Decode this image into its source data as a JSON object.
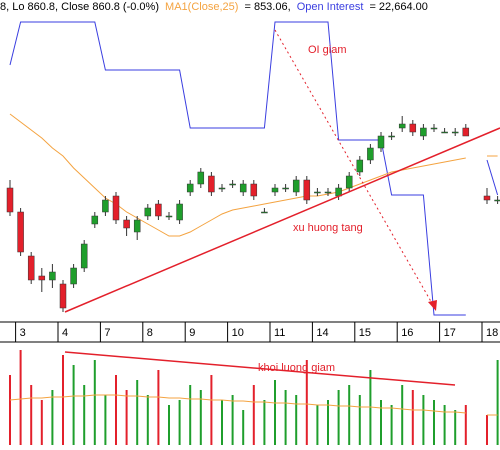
{
  "chart_data": [
    {
      "type": "candlestick",
      "title": "8, Lo 860.8, Close 860.8 (-0.0%)",
      "categories": [
        null,
        "3",
        null,
        null,
        null,
        "4",
        null,
        null,
        null,
        "7",
        null,
        null,
        null,
        "8",
        null,
        null,
        null,
        "9",
        null,
        null,
        null,
        "10",
        null,
        null,
        null,
        "11",
        null,
        null,
        null,
        "14",
        null,
        null,
        null,
        "15",
        null,
        null,
        null,
        "16",
        null,
        null,
        null,
        "17",
        null,
        null,
        null,
        "18",
        null
      ],
      "open": [
        853,
        847,
        836,
        831,
        830,
        829,
        829,
        833,
        844,
        847,
        851,
        845,
        842,
        846,
        849,
        846,
        845,
        852,
        854,
        856,
        853,
        854,
        852,
        854,
        847,
        852,
        853,
        852,
        855,
        852,
        852,
        851,
        853,
        857,
        860,
        863,
        866,
        868,
        869,
        866,
        868,
        867,
        867,
        868,
        null,
        851,
        850
      ],
      "high": [
        855,
        848,
        837,
        833,
        834,
        830,
        834,
        840,
        847,
        851,
        852,
        846,
        846,
        849,
        850,
        847,
        850,
        855,
        858,
        857,
        854,
        855,
        855,
        855,
        848,
        854,
        854,
        856,
        856,
        853,
        853,
        854,
        857,
        861,
        864,
        867,
        867,
        871,
        870,
        869,
        869,
        868,
        868,
        869,
        null,
        853,
        851
      ],
      "low": [
        846,
        836,
        829,
        827,
        828,
        822,
        828,
        832,
        843,
        846,
        844,
        841,
        840,
        845,
        845,
        845,
        844,
        851,
        853,
        851,
        852,
        853,
        851,
        850,
        847,
        851,
        852,
        851,
        849,
        851,
        851,
        850,
        852,
        856,
        859,
        862,
        865,
        867,
        866,
        865,
        867,
        867,
        866,
        866,
        null,
        849,
        849
      ],
      "close": [
        847,
        837,
        830,
        830,
        832,
        823,
        833,
        839,
        846,
        850,
        845,
        843,
        845,
        848,
        846,
        846,
        849,
        854,
        857,
        852,
        853,
        854,
        854,
        851,
        847,
        853,
        853,
        855,
        850,
        852,
        852,
        853,
        856,
        860,
        863,
        866,
        866,
        869,
        867,
        868,
        868,
        867,
        867,
        866,
        null,
        850,
        850
      ],
      "up_color": "#1f9e2c",
      "down_color": "#e3202b",
      "ylim": [
        820,
        900
      ],
      "ma": {
        "name": "MA1(Close,25)",
        "value_label": "= 853.06,",
        "color": "#f4a340",
        "values": [
          871.5,
          869.5,
          867.5,
          865.5,
          863,
          861,
          858,
          855.5,
          853,
          850.5,
          849,
          847,
          845.5,
          844,
          842.5,
          841,
          841,
          842,
          843.5,
          845,
          846.5,
          847.5,
          848,
          848.5,
          849,
          849.5,
          850,
          850.5,
          851,
          851,
          851.5,
          852,
          853,
          854,
          855,
          856,
          857,
          857.5,
          858,
          858.5,
          859,
          859.5,
          860,
          860.5,
          null,
          861,
          861
        ]
      },
      "open_interest": {
        "name": "Open Interest",
        "value_label": "= 22,664.00",
        "color": "#3a3ee0",
        "axis": "y2",
        "values": [
          22924,
          23010,
          23010,
          23010,
          23010,
          23010,
          23010,
          23010,
          23010,
          22914,
          22914,
          22914,
          22914,
          22914,
          22914,
          22914,
          22914,
          22798,
          22798,
          22798,
          22798,
          22798,
          22798,
          22798,
          22798,
          23010,
          23010,
          23010,
          23010,
          23010,
          23010,
          22774,
          22774,
          22774,
          22774,
          22774,
          22664,
          22664,
          22664,
          22664,
          22424,
          22424,
          22424,
          22424,
          null,
          22734,
          22664
        ]
      },
      "y2lim": [
        22414,
        23054
      ],
      "annotations": [
        "OI giam",
        "xu huong tang"
      ],
      "annotation_color": "#e3202b"
    },
    {
      "type": "bar",
      "values": [
        70,
        95,
        60,
        45,
        55,
        90,
        80,
        60,
        85,
        50,
        70,
        55,
        65,
        50,
        75,
        40,
        45,
        60,
        55,
        70,
        45,
        50,
        35,
        60,
        45,
        65,
        55,
        50,
        85,
        40,
        45,
        55,
        60,
        50,
        75,
        45,
        40,
        60,
        55,
        50,
        45,
        40,
        35,
        40,
        null,
        30,
        85
      ],
      "ylim": [
        0,
        100
      ],
      "ma": {
        "color": "#f4a340",
        "values": [
          45,
          46,
          47,
          47,
          48,
          48,
          49,
          49,
          50,
          50,
          50,
          49,
          49,
          48,
          48,
          47,
          47,
          46,
          46,
          45,
          45,
          44,
          44,
          43,
          43,
          42,
          42,
          41,
          41,
          40,
          40,
          39,
          39,
          38,
          38,
          37,
          37,
          36,
          35,
          35,
          34,
          33,
          33,
          32,
          null,
          30,
          30
        ]
      },
      "annotations": [
        "khoi luong giam"
      ]
    }
  ]
}
